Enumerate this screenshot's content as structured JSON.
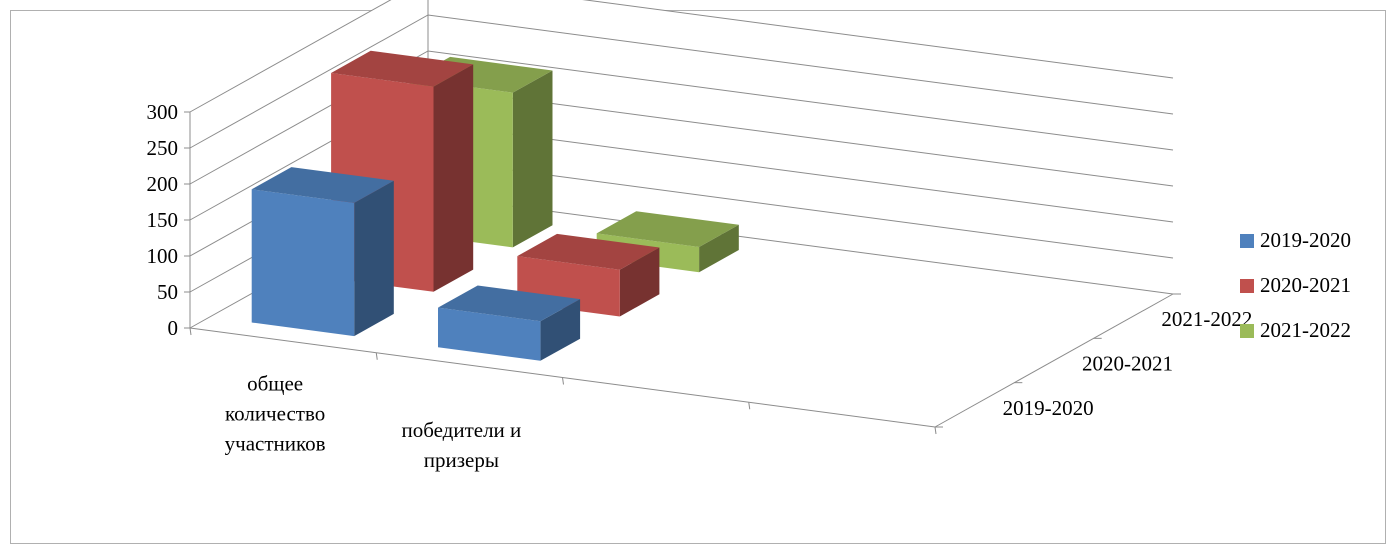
{
  "chart_data": {
    "type": "bar",
    "categories": [
      "общее количество участников",
      "победители и призеры"
    ],
    "category_lines": [
      [
        "общее",
        "количество",
        "участников"
      ],
      [
        "победители и",
        "призеры"
      ]
    ],
    "series": [
      {
        "name": "2019-2020",
        "values": [
          185,
          55
        ],
        "color": "#4F81BD"
      },
      {
        "name": "2020-2021",
        "values": [
          285,
          65
        ],
        "color": "#C0504D"
      },
      {
        "name": "2021-2022",
        "values": [
          215,
          35
        ],
        "color": "#9BBB59"
      }
    ],
    "depth_labels": [
      "2019-2020",
      "2020-2021",
      "2021-2022"
    ],
    "yticks": [
      "0",
      "50",
      "100",
      "150",
      "200",
      "250",
      "300"
    ],
    "ylim": [
      0,
      300
    ],
    "legend": [
      "2019-2020",
      "2020-2021",
      "2021-2022"
    ],
    "legend_position": "right",
    "grid": true
  }
}
